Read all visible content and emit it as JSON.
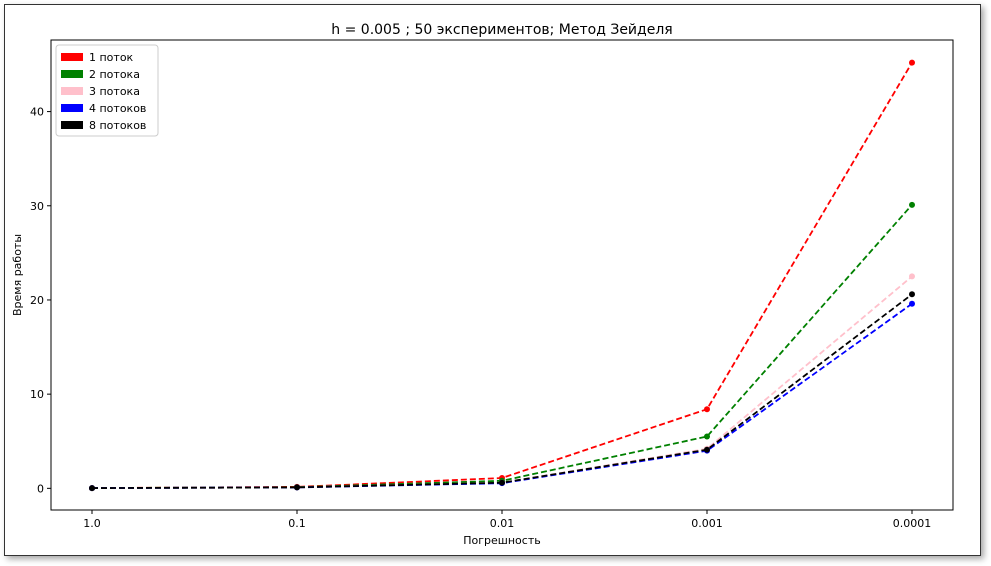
{
  "chart_data": {
    "type": "line",
    "title": "h = 0.005 ; 50 экспериментов; Метод Зейделя",
    "xlabel": "Погрешность",
    "ylabel": "Время работы",
    "categories": [
      "1.0",
      "0.1",
      "0.01",
      "0.001",
      "0.0001"
    ],
    "ylim": [
      -2.3,
      47.6
    ],
    "yticks": [
      0,
      10,
      20,
      30,
      40
    ],
    "grid": false,
    "legend_position": "top-left",
    "line_style": "dashed",
    "marker": "dot",
    "series": [
      {
        "name": "1 поток",
        "color": "#ff0000",
        "values": [
          0.02,
          0.15,
          1.1,
          8.4,
          45.2
        ]
      },
      {
        "name": "2 потока",
        "color": "#008000",
        "values": [
          0.02,
          0.12,
          0.8,
          5.5,
          30.1
        ]
      },
      {
        "name": "3 потока",
        "color": "#ffc0cb",
        "values": [
          0.02,
          0.1,
          0.6,
          4.2,
          22.5
        ]
      },
      {
        "name": "4 потоков",
        "color": "#0000ff",
        "values": [
          0.02,
          0.1,
          0.55,
          4.0,
          19.6
        ]
      },
      {
        "name": "8 потоков",
        "color": "#000000",
        "values": [
          0.02,
          0.1,
          0.6,
          4.1,
          20.6
        ]
      }
    ]
  }
}
